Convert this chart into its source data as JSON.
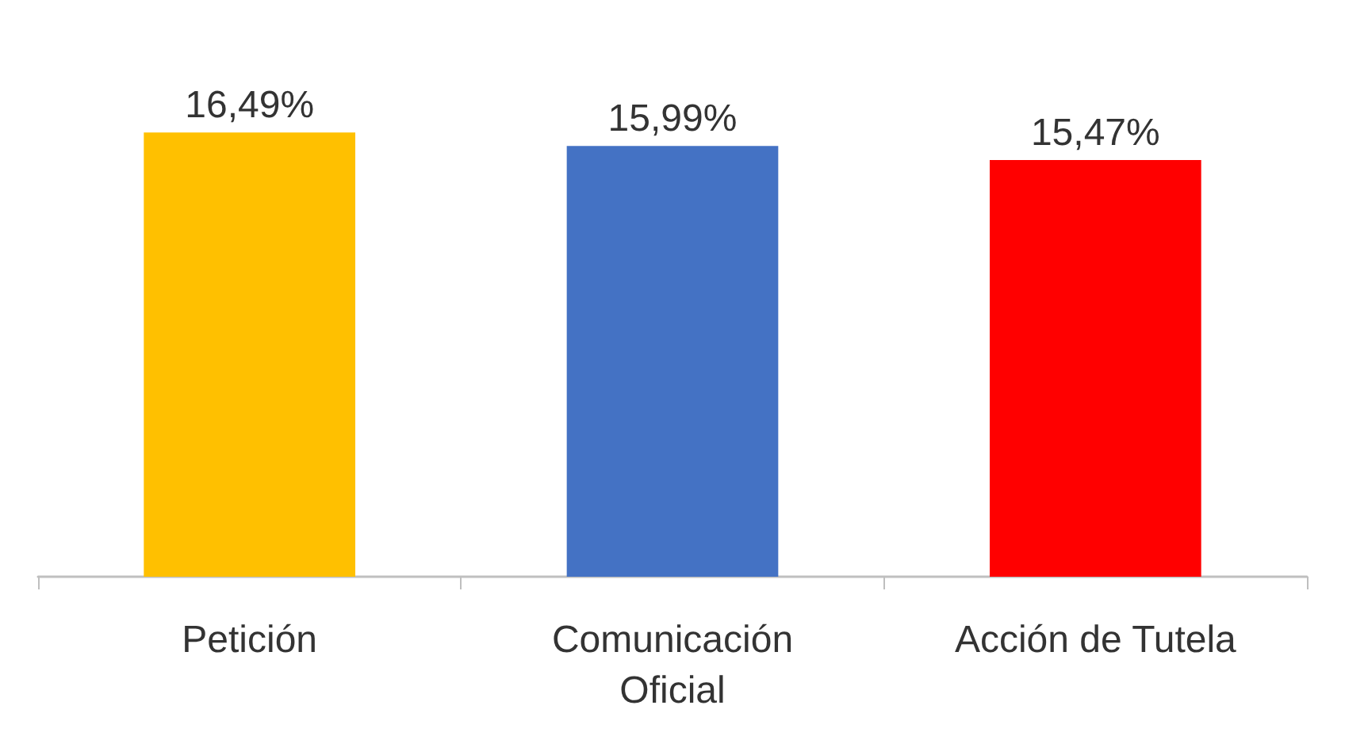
{
  "chart_data": {
    "type": "bar",
    "categories": [
      "Petición",
      "Comunicación Oficial",
      "Acción de Tutela"
    ],
    "values": [
      16.49,
      15.99,
      15.47
    ],
    "colors": [
      "#ffc000",
      "#4472c4",
      "#ff0000"
    ],
    "value_labels": [
      "16,49%",
      "15,99%",
      "15,47%"
    ],
    "tick_labels": "x"
  }
}
